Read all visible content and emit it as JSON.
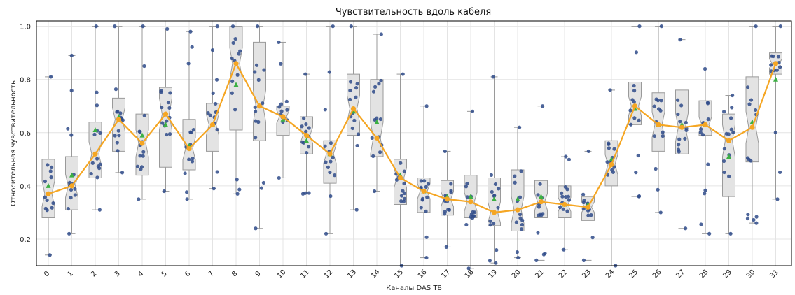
{
  "chart_data": {
    "type": "box",
    "title": "Чувствительность вдоль кабеля",
    "xlabel": "Каналы DAS T8",
    "ylabel": "Относительная чувствительность",
    "ylim": [
      0.1,
      1.02
    ],
    "yticks": [
      "0.2",
      "0.4",
      "0.6",
      "0.8",
      "1.0"
    ],
    "grid": true,
    "categories": [
      "0",
      "1",
      "2",
      "3",
      "4",
      "5",
      "6",
      "7",
      "8",
      "9",
      "10",
      "11",
      "12",
      "13",
      "14",
      "15",
      "16",
      "17",
      "18",
      "19",
      "20",
      "21",
      "22",
      "23",
      "24",
      "25",
      "26",
      "27",
      "28",
      "29",
      "30",
      "31"
    ],
    "medians": [
      0.37,
      0.4,
      0.52,
      0.65,
      0.56,
      0.67,
      0.54,
      0.63,
      0.86,
      0.7,
      0.66,
      0.59,
      0.52,
      0.69,
      0.58,
      0.43,
      0.38,
      0.35,
      0.34,
      0.3,
      0.31,
      0.34,
      0.33,
      0.32,
      0.48,
      0.7,
      0.63,
      0.62,
      0.63,
      0.57,
      0.62,
      0.86
    ],
    "q1": [
      0.28,
      0.31,
      0.43,
      0.53,
      0.44,
      0.47,
      0.46,
      0.53,
      0.61,
      0.57,
      0.59,
      0.52,
      0.41,
      0.59,
      0.51,
      0.33,
      0.3,
      0.29,
      0.28,
      0.25,
      0.23,
      0.28,
      0.28,
      0.27,
      0.4,
      0.63,
      0.53,
      0.52,
      0.59,
      0.36,
      0.49,
      0.82
    ],
    "q3": [
      0.5,
      0.51,
      0.64,
      0.73,
      0.67,
      0.77,
      0.65,
      0.71,
      1.0,
      0.94,
      0.7,
      0.66,
      0.57,
      0.82,
      0.8,
      0.5,
      0.43,
      0.42,
      0.44,
      0.43,
      0.46,
      0.42,
      0.4,
      0.36,
      0.57,
      0.79,
      0.75,
      0.76,
      0.72,
      0.67,
      0.81,
      0.9
    ],
    "whisker_low": [
      0.14,
      0.22,
      0.31,
      0.45,
      0.35,
      0.38,
      0.35,
      0.39,
      0.37,
      0.24,
      0.43,
      0.37,
      0.22,
      0.31,
      0.38,
      0.1,
      0.13,
      0.17,
      0.09,
      0.11,
      0.13,
      0.12,
      0.16,
      0.12,
      0.1,
      0.36,
      0.3,
      0.24,
      0.22,
      0.22,
      0.26,
      0.35
    ],
    "whisker_high": [
      0.81,
      0.89,
      1.0,
      1.0,
      1.0,
      0.99,
      0.98,
      1.0,
      1.0,
      1.0,
      0.94,
      0.82,
      1.0,
      1.0,
      0.97,
      0.82,
      0.7,
      0.53,
      0.68,
      0.81,
      0.62,
      0.7,
      0.51,
      0.53,
      0.76,
      1.0,
      1.0,
      0.95,
      0.84,
      0.74,
      1.0,
      1.0
    ],
    "means": [
      0.4,
      0.44,
      0.61,
      0.66,
      0.59,
      0.63,
      0.55,
      0.63,
      0.78,
      0.7,
      0.65,
      0.57,
      0.52,
      0.68,
      0.64,
      0.44,
      0.38,
      0.36,
      0.36,
      0.35,
      0.35,
      0.36,
      0.33,
      0.33,
      0.5,
      0.69,
      0.63,
      0.63,
      0.63,
      0.51,
      0.64,
      0.8
    ],
    "colors": {
      "box_fill": "#e3e3e3",
      "box_edge": "#9a9a9a",
      "points": "#2f4b8a",
      "median_line": "#f5a623",
      "median_marker": "#f5a623",
      "mean_marker": "#3cb043"
    }
  }
}
